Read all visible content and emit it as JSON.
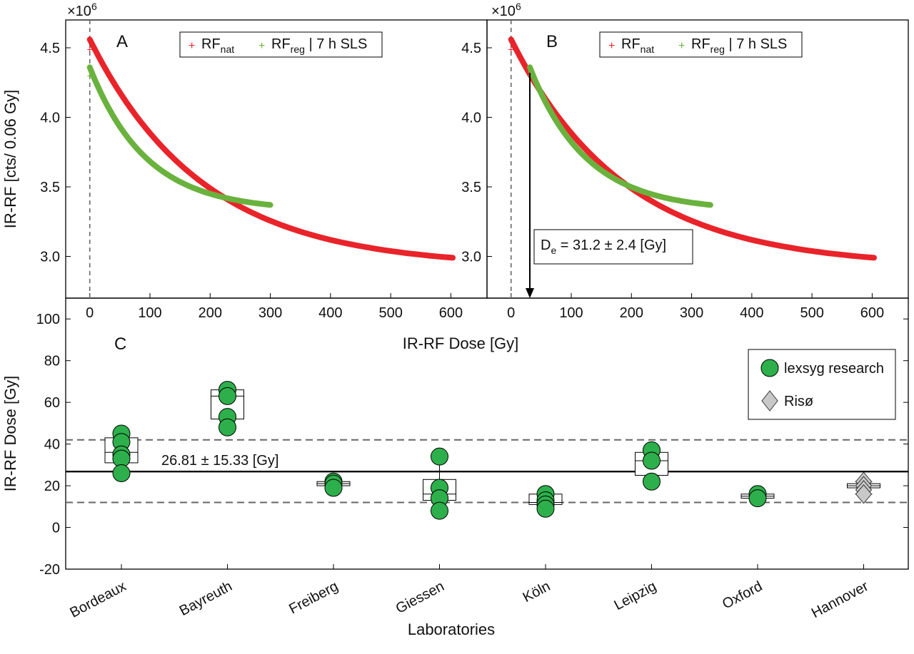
{
  "figure": {
    "y_axis_label_top": "IR-RF [cts/ 0.06 Gy]",
    "x_axis_label_top": "IR-RF Dose [Gy]",
    "y_axis_label_bottom": "IR-RF Dose [Gy]",
    "x_axis_label_bottom": "Laboratories",
    "exponent_A": "×10",
    "exponent_B": "×10",
    "exponent_power": "6"
  },
  "panels": {
    "A": {
      "letter": "A"
    },
    "B": {
      "letter": "B",
      "de_annotation": "D",
      "de_sub": "e",
      "de_value": " = 31.2 ± 2.4 [Gy]"
    },
    "C": {
      "letter": "C",
      "mean_annotation": "26.81 ± 15.33 [Gy]"
    }
  },
  "legend_top": {
    "nat_label": "RF",
    "nat_sub": "nat",
    "reg_label": "RF",
    "reg_sub": "reg",
    "reg_suffix": " | 7 h SLS"
  },
  "legend_bottom": {
    "lexsyg": "lexsyg research",
    "riso": "Risø"
  },
  "colors": {
    "nat": "#e8242a",
    "reg": "#6ab23e",
    "lexsyg": "#2db04b",
    "riso": "#c8c8c8",
    "dash": "#666666"
  },
  "chart_data": [
    {
      "panel": "A",
      "type": "scatter",
      "xlim": [
        -40,
        660
      ],
      "ylim": [
        2.7,
        4.7
      ],
      "y_multiplier": 1000000,
      "x_ticks": [
        0,
        100,
        200,
        300,
        400,
        500,
        600
      ],
      "y_ticks": [
        3.0,
        3.5,
        4.0,
        4.5
      ],
      "y_tick_labels": [
        "3.0",
        "3.5",
        "4.0",
        "4.5"
      ],
      "vertical_dashed_line_x": 0,
      "series": [
        {
          "name": "RF_nat",
          "x_range": [
            0,
            603
          ],
          "y_start": 4.56,
          "y_end": 2.99,
          "dy_end_slope": 0.0024,
          "outlier_points": [
            [
              0,
              4.49
            ]
          ]
        },
        {
          "name": "RF_reg | 7 h SLS",
          "x_range": [
            0,
            300
          ],
          "y_start": 4.36,
          "y_end": 3.37,
          "dy_end_slope": 0.0023,
          "outlier_points": [
            [
              0,
              4.3
            ]
          ]
        }
      ]
    },
    {
      "panel": "B",
      "type": "scatter",
      "xlim": [
        -40,
        660
      ],
      "ylim": [
        2.7,
        4.7
      ],
      "y_multiplier": 1000000,
      "x_ticks": [
        0,
        100,
        200,
        300,
        400,
        500,
        600
      ],
      "y_ticks": [
        3.0,
        3.5,
        4.0,
        4.5
      ],
      "y_tick_labels": [
        "3.0",
        "3.5",
        "4.0",
        "4.5"
      ],
      "vertical_dashed_line_x": 0,
      "de_arrow_x": 31.2,
      "series": [
        {
          "name": "RF_nat",
          "x_range": [
            0,
            603
          ],
          "y_start": 4.56,
          "y_end": 2.99,
          "dy_end_slope": 0.0024,
          "outlier_points": [
            [
              0,
              4.49
            ]
          ]
        },
        {
          "name": "RF_reg | 7 h SLS",
          "x_range": [
            31.2,
            331.2
          ],
          "y_start": 4.36,
          "y_end": 3.37,
          "dy_end_slope": 0.0023,
          "outlier_points": [
            [
              31.2,
              4.3
            ]
          ]
        }
      ]
    },
    {
      "panel": "C",
      "type": "box+scatter",
      "categories": [
        "Bordeaux",
        "Bayreuth",
        "Freiberg",
        "Giessen",
        "Köln",
        "Leipzig",
        "Oxford",
        "Hannover"
      ],
      "ylim": [
        -20,
        110
      ],
      "y_ticks": [
        -20,
        0,
        20,
        40,
        60,
        80,
        100
      ],
      "mean_line": 26.81,
      "dashed_lines": [
        12,
        42
      ],
      "groups": [
        {
          "lab": "Bordeaux",
          "device": "lexsyg",
          "points": [
            45,
            41,
            35,
            33,
            26
          ],
          "box": [
            31,
            36,
            43
          ],
          "whiskers": [
            26,
            45
          ]
        },
        {
          "lab": "Bayreuth",
          "device": "lexsyg",
          "points": [
            66,
            63,
            53,
            48
          ],
          "box": [
            52,
            63,
            66
          ],
          "whiskers": [
            48,
            66
          ]
        },
        {
          "lab": "Freiberg",
          "device": "lexsyg",
          "points": [
            22,
            21,
            19
          ],
          "box": [
            20,
            21,
            22
          ],
          "whiskers": [
            19,
            22
          ]
        },
        {
          "lab": "Giessen",
          "device": "lexsyg",
          "points": [
            34,
            19,
            14,
            8
          ],
          "box": [
            13,
            16,
            23
          ],
          "whiskers": [
            8,
            34
          ]
        },
        {
          "lab": "Köln",
          "device": "lexsyg",
          "points": [
            16,
            13,
            11,
            9
          ],
          "box": [
            11,
            12,
            16
          ],
          "whiskers": [
            9,
            16
          ]
        },
        {
          "lab": "Leipzig",
          "device": "lexsyg",
          "points": [
            37,
            32,
            22
          ],
          "box": [
            25,
            32,
            36
          ],
          "whiskers": [
            22,
            37
          ]
        },
        {
          "lab": "Oxford",
          "device": "lexsyg",
          "points": [
            16,
            14
          ],
          "box": [
            14,
            15,
            16
          ],
          "whiskers": [
            14,
            16
          ]
        },
        {
          "lab": "Hannover",
          "device": "riso",
          "points": [
            22,
            20,
            18,
            16
          ],
          "box": [
            19,
            20,
            21
          ],
          "whiskers": [
            16,
            22
          ]
        }
      ]
    }
  ]
}
